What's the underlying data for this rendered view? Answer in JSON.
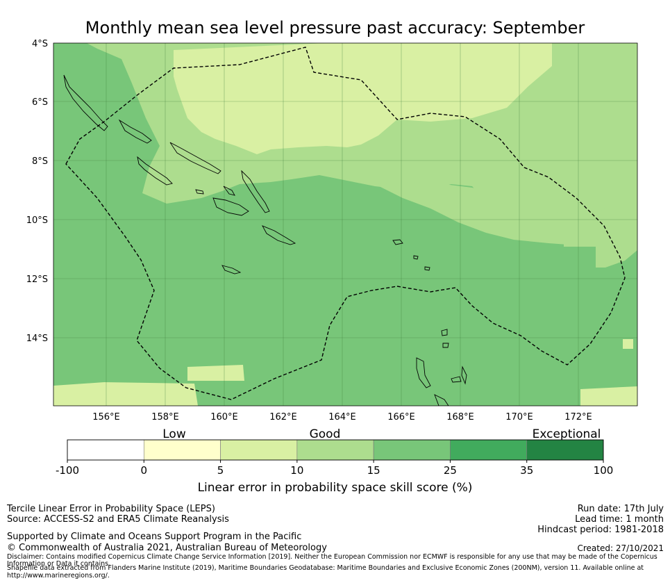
{
  "title": "Monthly mean sea level pressure past accuracy: September",
  "map": {
    "lat_labels": [
      "4°S",
      "6°S",
      "8°S",
      "10°S",
      "12°S",
      "14°S"
    ],
    "lon_labels": [
      "156°E",
      "158°E",
      "160°E",
      "162°E",
      "164°E",
      "166°E",
      "168°E",
      "170°E",
      "172°E"
    ],
    "region": "Solomon Islands EEZ (dashed outline) and surrounding ocean",
    "colors": {
      "low_5_10": "#d9f0a3",
      "mid_10_15": "#addd8e",
      "high_15_25": "#78c679"
    }
  },
  "colorbar": {
    "categories": [
      "Low",
      "Good",
      "Exceptional"
    ],
    "ticks": [
      "-100",
      "0",
      "5",
      "10",
      "15",
      "25",
      "35",
      "100"
    ],
    "colors": [
      "#ffffff",
      "#ffffcc",
      "#d9f0a3",
      "#addd8e",
      "#78c679",
      "#41ab5d",
      "#238443"
    ],
    "label": "Linear error in probability space skill score (%)"
  },
  "footer": {
    "method": "Tercile Linear Error in Probability Space (LEPS)",
    "source": "Source: ACCESS-S2 and ERA5 Climate Reanalysis",
    "run_date": "Run date: 17th July",
    "lead_time": "Lead time: 1 month",
    "hindcast": "Hindcast period: 1981-2018",
    "supported": "Supported by Climate and Oceans Support Program in the Pacific",
    "copyright": "© Commonwealth of Australia 2021, Australian Bureau of Meteorology",
    "created": "Created: 27/10/2021",
    "disclaimer_1": "Disclaimer: Contains modified Copernicus Climate Change Service Information [2019]. Neither the European Commission nor ECMWF is responsible for any use that may be made of the Copernicus",
    "disclaimer_2": "Information or Data it contains.",
    "shapefile_1": "Shapefile data extracted from Flanders Marine Institute (2019), Maritime Boundaries Geodatabase: Maritime Boundaries and Exclusive Economic Zones (200NM), version 11. Available online at",
    "shapefile_2": "http://www.marineregions.org/."
  }
}
